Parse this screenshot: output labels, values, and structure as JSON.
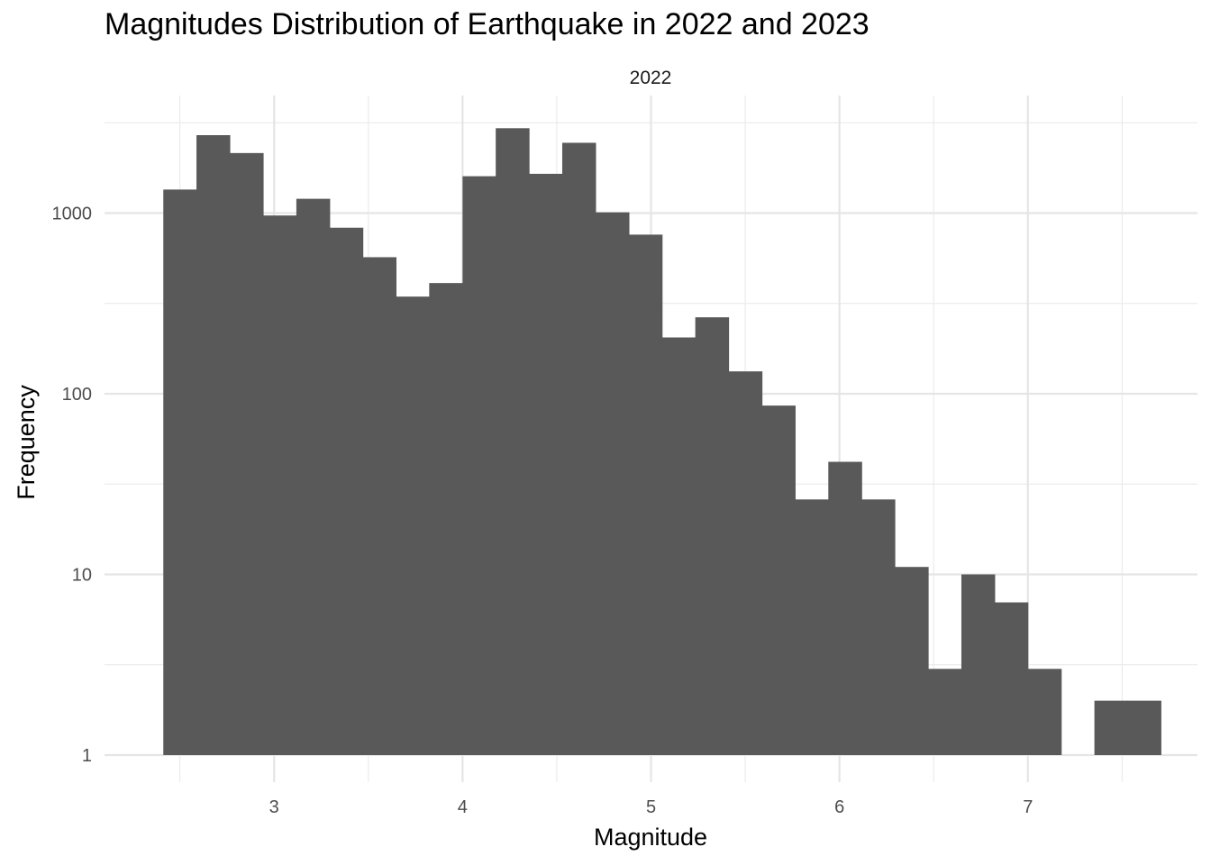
{
  "chart_data": {
    "type": "bar",
    "title": "Magnitudes Distribution of Earthquake in 2022 and 2023",
    "panel_label": "2022",
    "xlabel": "Magnitude",
    "ylabel": "Frequency",
    "x_ticks": [
      3,
      4,
      5,
      6,
      7
    ],
    "x_minor_ticks": [
      2.5,
      3.5,
      4.5,
      5.5,
      6.5,
      7.5
    ],
    "xlim": [
      2.1,
      7.9
    ],
    "y_scale": "log10",
    "y_ticks": [
      1,
      10,
      100,
      1000
    ],
    "y_tick_labels": [
      "1",
      "10",
      "100",
      "1000"
    ],
    "ylim": [
      0.85,
      6000
    ],
    "grid": true,
    "bar_color": "#595959",
    "bin_width": 0.1764,
    "bins": [
      {
        "x0": 2.412,
        "count": 1350
      },
      {
        "x0": 2.588,
        "count": 2700
      },
      {
        "x0": 2.765,
        "count": 2150
      },
      {
        "x0": 2.941,
        "count": 970
      },
      {
        "x0": 3.118,
        "count": 1200
      },
      {
        "x0": 3.294,
        "count": 830
      },
      {
        "x0": 3.47,
        "count": 570
      },
      {
        "x0": 3.647,
        "count": 345
      },
      {
        "x0": 3.823,
        "count": 410
      },
      {
        "x0": 4.0,
        "count": 1600
      },
      {
        "x0": 4.176,
        "count": 2950
      },
      {
        "x0": 4.353,
        "count": 1650
      },
      {
        "x0": 4.529,
        "count": 2450
      },
      {
        "x0": 4.706,
        "count": 1010
      },
      {
        "x0": 4.882,
        "count": 760
      },
      {
        "x0": 5.059,
        "count": 205
      },
      {
        "x0": 5.235,
        "count": 265
      },
      {
        "x0": 5.412,
        "count": 133
      },
      {
        "x0": 5.588,
        "count": 86
      },
      {
        "x0": 5.765,
        "count": 26
      },
      {
        "x0": 5.941,
        "count": 42
      },
      {
        "x0": 6.117,
        "count": 26
      },
      {
        "x0": 6.294,
        "count": 11
      },
      {
        "x0": 6.47,
        "count": 3
      },
      {
        "x0": 6.647,
        "count": 10
      },
      {
        "x0": 6.823,
        "count": 7
      },
      {
        "x0": 7.0,
        "count": 3
      },
      {
        "x0": 7.176,
        "count": 0
      },
      {
        "x0": 7.353,
        "count": 2
      },
      {
        "x0": 7.529,
        "count": 2
      }
    ]
  }
}
